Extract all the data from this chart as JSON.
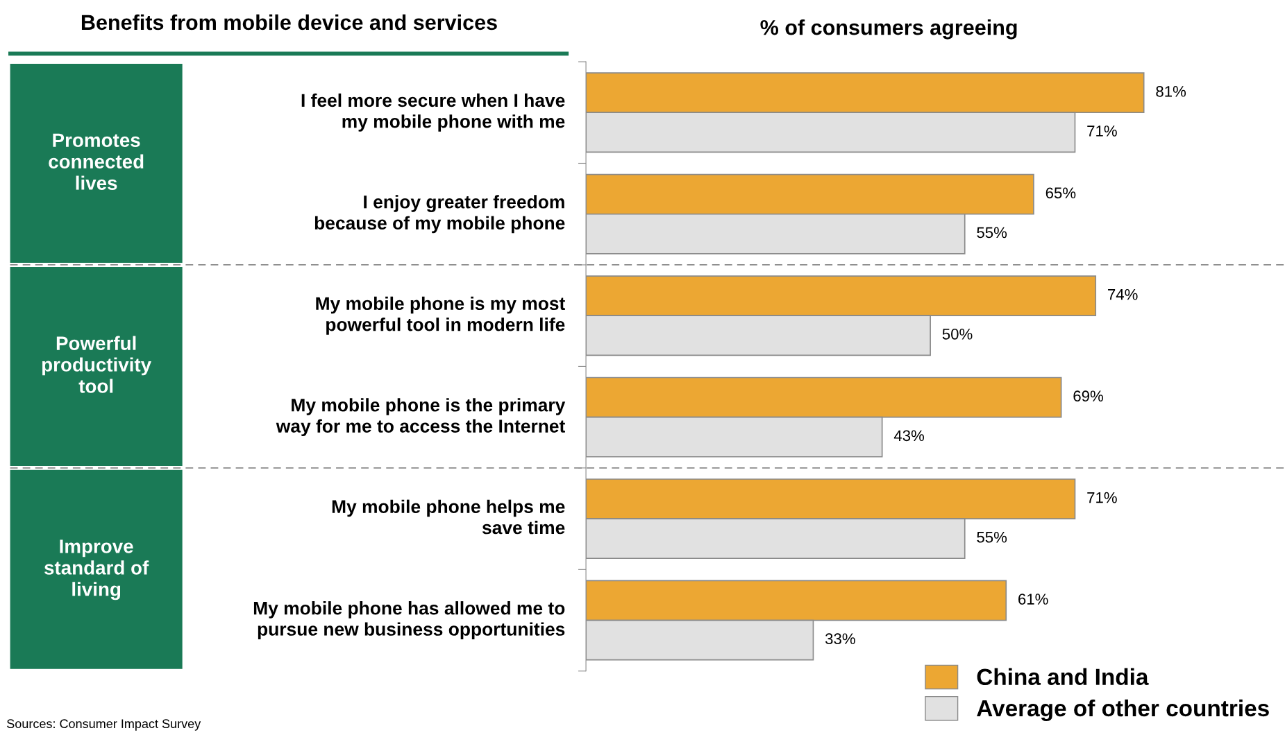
{
  "chart_data": {
    "type": "bar",
    "orientation": "horizontal",
    "title": "% of consumers agreeing",
    "ylabel": "Benefits from mobile device and services",
    "categories": [
      "I feel more secure when I have\nmy mobile phone with me",
      "I enjoy greater freedom\nbecause of my mobile phone",
      "My mobile phone is my most\npowerful tool in modern life",
      "My mobile phone is the primary\nway for me to access the Internet",
      "My mobile phone helps me\nsave time",
      "My mobile phone has allowed me to\npursue new business opportunities"
    ],
    "series": [
      {
        "name": "China and India",
        "color": "#eca733",
        "values": [
          81,
          65,
          74,
          69,
          71,
          61
        ],
        "value_labels": [
          "81%",
          "65%",
          "74%",
          "69%",
          "71%",
          "61%"
        ]
      },
      {
        "name": "Average of other countries",
        "color": "#e1e1e1",
        "values": [
          71,
          55,
          50,
          43,
          55,
          33
        ],
        "value_labels": [
          "71%",
          "55%",
          "50%",
          "43%",
          "55%",
          "33%"
        ]
      }
    ],
    "annotations": [
      "Promotes\nconnected\nlives",
      "Powerful\nproductivity\ntool",
      "Improve\nstandard of\nliving",
      "Sources: Consumer Impact Survey"
    ],
    "legend": "bottom right",
    "grid": false
  }
}
